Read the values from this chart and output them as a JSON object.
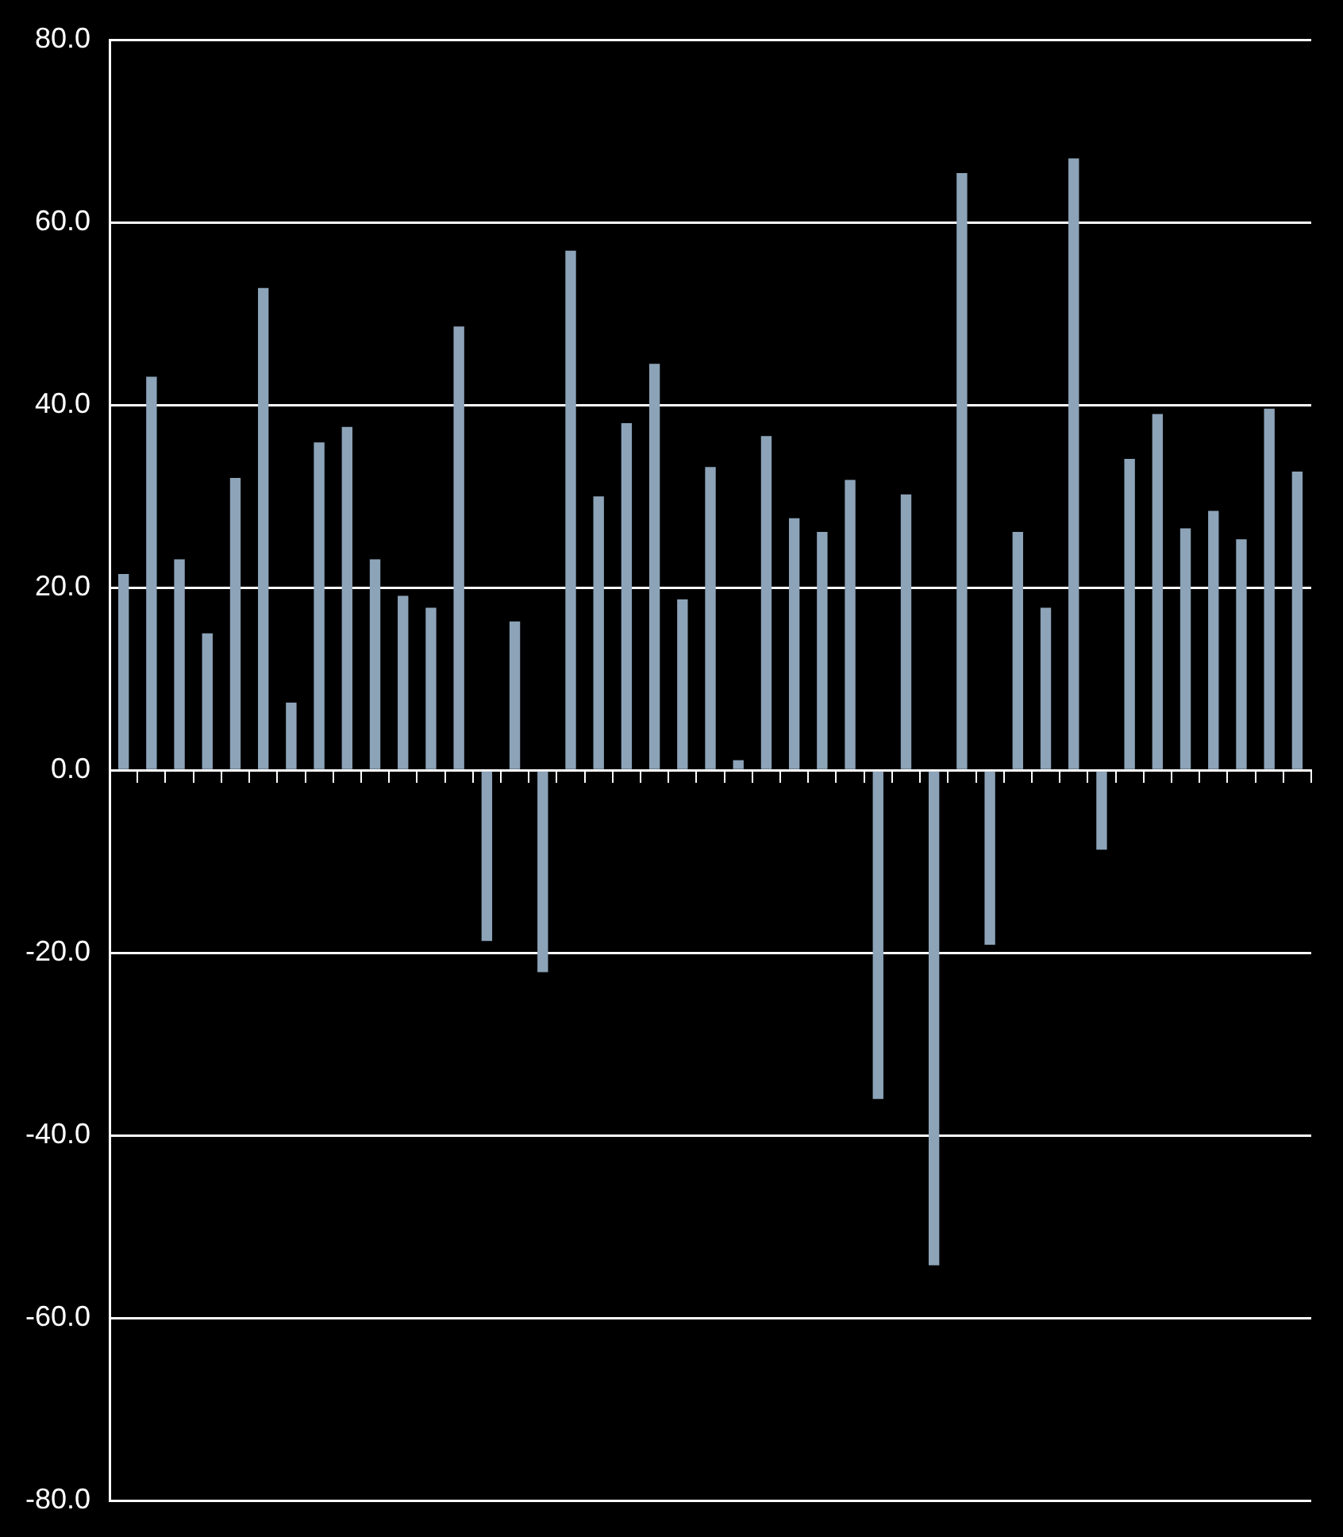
{
  "chart_data": {
    "type": "bar",
    "categories": [
      null,
      null,
      null,
      null,
      null,
      null,
      null,
      null,
      null,
      null,
      null,
      null,
      null,
      null,
      null,
      null,
      null,
      null,
      null,
      null,
      null,
      null,
      null,
      null,
      null,
      null,
      null,
      null,
      null,
      null,
      null,
      null,
      null,
      null,
      null,
      null,
      null,
      null,
      null,
      null,
      null,
      null,
      null
    ],
    "values": [
      21.5,
      43.1,
      23.1,
      15.0,
      32.0,
      52.8,
      7.4,
      35.9,
      37.6,
      23.1,
      19.1,
      17.8,
      48.6,
      -18.7,
      16.3,
      -22.1,
      56.9,
      30.0,
      38.0,
      44.5,
      18.7,
      33.2,
      1.1,
      36.6,
      27.6,
      26.1,
      31.8,
      -36.0,
      30.2,
      -54.2,
      65.4,
      -19.1,
      26.1,
      17.8,
      67.0,
      -8.7,
      34.1,
      39.0,
      26.5,
      28.4,
      25.3,
      39.6,
      32.7
    ],
    "color": "#8ca3b8",
    "ylim": [
      -80,
      80
    ],
    "yticks": [
      {
        "value": -80,
        "label": "-80.0"
      },
      {
        "value": -60,
        "label": "-60.0"
      },
      {
        "value": -40,
        "label": "-40.0"
      },
      {
        "value": -20,
        "label": "-20.0"
      },
      {
        "value": 0,
        "label": "0.0"
      },
      {
        "value": 20,
        "label": "20.0"
      },
      {
        "value": 40,
        "label": "40.0"
      },
      {
        "value": 60,
        "label": "60.0"
      },
      {
        "value": 80,
        "label": "80.0"
      }
    ],
    "grid": "y",
    "legend": false
  }
}
